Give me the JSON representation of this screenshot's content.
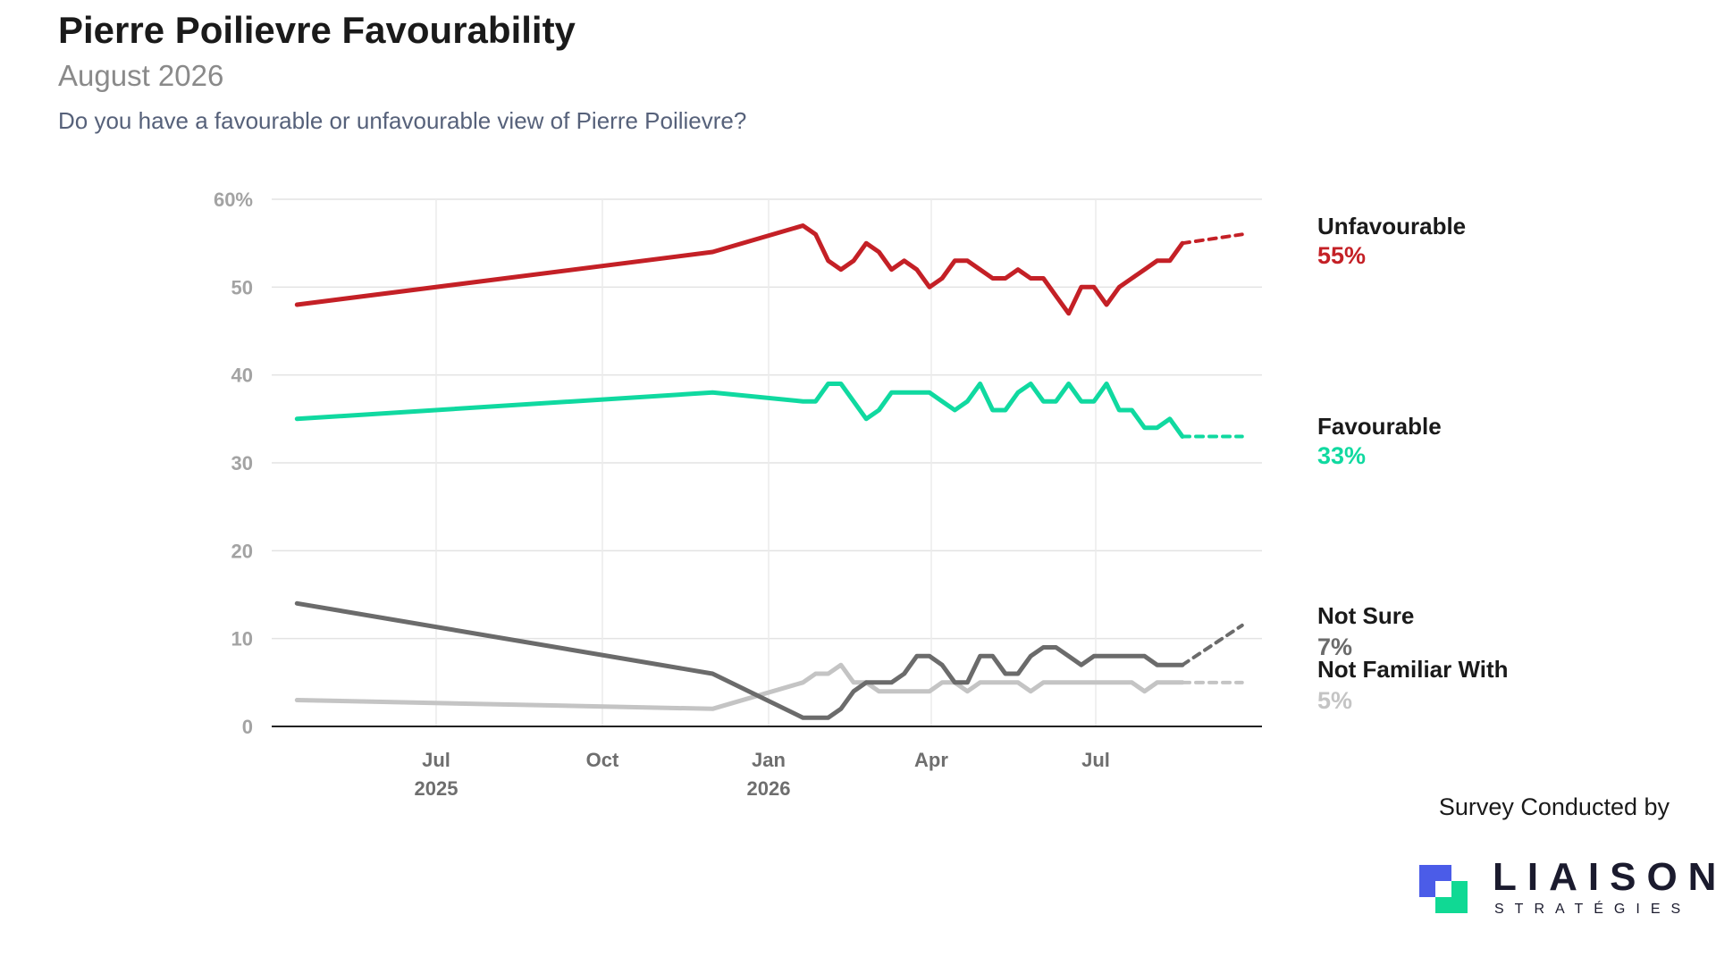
{
  "header": {
    "title": "Pierre Poilievre Favourability",
    "subtitle": "August 2026",
    "question": "Do you have a favourable or unfavourable view of Pierre Poilievre?"
  },
  "footer": {
    "credit": "Survey Conducted by",
    "logo_word": "LIAISON",
    "logo_sub": "STRATÉGIES"
  },
  "colors": {
    "unfavourable": "#c42026",
    "favourable": "#10d9a0",
    "not_sure": "#6b6b6b",
    "not_familiar": "#c4c4c4"
  },
  "chart_data": {
    "type": "line",
    "title": "Pierre Poilievre Favourability",
    "ylim": [
      0,
      60
    ],
    "y_ticks": [
      0,
      10,
      20,
      30,
      40,
      50,
      60
    ],
    "y_tick_labels": [
      "0",
      "10",
      "20",
      "30",
      "40",
      "50",
      "60%"
    ],
    "x_range": [
      "2025-04-01",
      "2026-10-01"
    ],
    "x_ticks": [
      {
        "date": "2025-07-01",
        "label": "Jul",
        "year": "2025"
      },
      {
        "date": "2025-10-01",
        "label": "Oct",
        "year": ""
      },
      {
        "date": "2026-01-01",
        "label": "Jan",
        "year": "2026"
      },
      {
        "date": "2026-04-01",
        "label": "Apr",
        "year": ""
      },
      {
        "date": "2026-07-01",
        "label": "Jul",
        "year": ""
      }
    ],
    "grid": true,
    "legend": "right-end labels",
    "x": [
      "2025-04-15",
      "2025-12-01",
      "2026-01-20",
      "2026-01-27",
      "2026-02-03",
      "2026-02-10",
      "2026-02-17",
      "2026-02-24",
      "2026-03-03",
      "2026-03-10",
      "2026-03-17",
      "2026-03-24",
      "2026-03-31",
      "2026-04-07",
      "2026-04-14",
      "2026-04-21",
      "2026-04-28",
      "2026-05-05",
      "2026-05-12",
      "2026-05-19",
      "2026-05-26",
      "2026-06-02",
      "2026-06-09",
      "2026-06-16",
      "2026-06-23",
      "2026-06-30",
      "2026-07-07",
      "2026-07-14",
      "2026-07-21",
      "2026-07-28",
      "2026-08-04",
      "2026-08-11",
      "2026-08-18"
    ],
    "projection_end": "2026-09-20",
    "series": [
      {
        "name": "Unfavourable",
        "key": "unfavourable",
        "latest": "55%",
        "values": [
          48,
          54,
          57,
          56,
          53,
          52,
          53,
          55,
          54,
          52,
          53,
          52,
          50,
          51,
          53,
          53,
          52,
          51,
          51,
          52,
          51,
          51,
          49,
          47,
          50,
          50,
          48,
          50,
          51,
          52,
          53,
          53,
          55
        ],
        "projection_value": 56
      },
      {
        "name": "Favourable",
        "key": "favourable",
        "latest": "33%",
        "values": [
          35,
          38,
          37,
          37,
          39,
          39,
          37,
          35,
          36,
          38,
          38,
          38,
          38,
          37,
          36,
          37,
          39,
          36,
          36,
          38,
          39,
          37,
          37,
          39,
          37,
          37,
          39,
          36,
          36,
          34,
          34,
          35,
          33
        ],
        "projection_value": 33
      },
      {
        "name": "Not Sure",
        "key": "not_sure",
        "latest": "7%",
        "values": [
          14,
          6,
          1,
          1,
          1,
          2,
          4,
          5,
          5,
          5,
          6,
          8,
          8,
          7,
          5,
          5,
          8,
          8,
          6,
          6,
          8,
          9,
          9,
          8,
          7,
          8,
          8,
          8,
          8,
          8,
          7,
          7,
          7
        ],
        "projection_value": 11.5
      },
      {
        "name": "Not Familiar With",
        "key": "not_familiar",
        "latest": "5%",
        "values": [
          3,
          2,
          5,
          6,
          6,
          7,
          5,
          5,
          4,
          4,
          4,
          4,
          4,
          5,
          5,
          4,
          5,
          5,
          5,
          5,
          4,
          5,
          5,
          5,
          5,
          5,
          5,
          5,
          5,
          4,
          5,
          5,
          5
        ],
        "projection_value": 5
      }
    ]
  }
}
